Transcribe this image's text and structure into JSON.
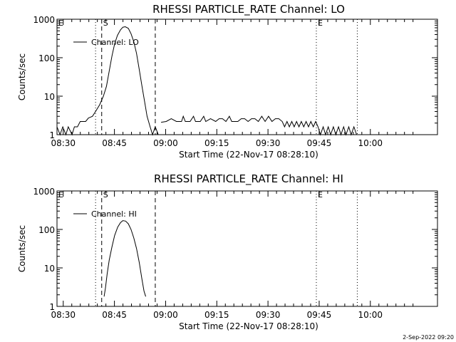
{
  "chart_data": [
    {
      "type": "line",
      "title": "RHESSI PARTICLE_RATE Channel: LO",
      "xlabel": "Start Time (22-Nov-17 08:28:10)",
      "ylabel": "Counts/sec",
      "yscale": "log",
      "ylim": [
        1,
        1000
      ],
      "xlim_minutes_after_0828_10": [
        0,
        111.5
      ],
      "x_ticks": [
        {
          "t": 1.83,
          "label": "08:30"
        },
        {
          "t": 16.83,
          "label": "08:45"
        },
        {
          "t": 31.83,
          "label": "09:00"
        },
        {
          "t": 46.83,
          "label": "09:15"
        },
        {
          "t": 61.83,
          "label": "09:30"
        },
        {
          "t": 76.83,
          "label": "09:45"
        },
        {
          "t": 91.83,
          "label": "10:00"
        }
      ],
      "y_ticks": [
        {
          "v": 1,
          "label": "1"
        },
        {
          "v": 10,
          "label": "10"
        },
        {
          "v": 100,
          "label": "100"
        },
        {
          "v": 1000,
          "label": "1000"
        }
      ],
      "legend": "Channel: LO",
      "legend_position": "top-left",
      "vlines": [
        {
          "t": 11.3,
          "style": "dotted",
          "label": ""
        },
        {
          "t": 13.1,
          "style": "dashed",
          "label": "S"
        },
        {
          "t": 28.8,
          "style": "dashed",
          "label": ""
        },
        {
          "t": 76.0,
          "style": "dotted",
          "label": "E"
        },
        {
          "t": 88.0,
          "style": "dotted",
          "label": ""
        }
      ],
      "corner_label": "E",
      "series": [
        {
          "name": "Channel: LO",
          "segments": [
            [
              [
                0,
                1.6
              ],
              [
                0.9,
                1
              ],
              [
                1.7,
                1.6
              ],
              [
                2.6,
                1
              ],
              [
                3.3,
                1.6
              ],
              [
                4.4,
                1
              ],
              [
                5.1,
                1.6
              ],
              [
                6.0,
                1.6
              ],
              [
                6.8,
                2.2
              ],
              [
                8.4,
                2.2
              ],
              [
                9.2,
                2.7
              ],
              [
                10.4,
                3
              ],
              [
                11.3,
                4
              ],
              [
                12.5,
                6
              ],
              [
                13.6,
                10
              ],
              [
                14.5,
                18
              ],
              [
                15.3,
                45
              ],
              [
                16.1,
                110
              ],
              [
                16.9,
                230
              ],
              [
                17.7,
                380
              ],
              [
                18.6,
                530
              ],
              [
                19.3,
                620
              ],
              [
                20.0,
                640
              ],
              [
                20.9,
                580
              ],
              [
                21.7,
                420
              ],
              [
                22.5,
                260
              ],
              [
                23.3,
                130
              ],
              [
                24.1,
                50
              ],
              [
                24.9,
                18
              ],
              [
                25.7,
                7
              ],
              [
                26.4,
                3
              ],
              [
                27.3,
                1.6
              ],
              [
                28.0,
                1
              ],
              [
                28.8,
                1.6
              ],
              [
                29.7,
                1
              ]
            ],
            [
              [
                30.5,
                2.1
              ],
              [
                32.0,
                2.2
              ],
              [
                33.5,
                2.6
              ],
              [
                35.0,
                2.2
              ],
              [
                36.5,
                2.2
              ],
              [
                37.0,
                3
              ],
              [
                37.6,
                2.2
              ],
              [
                39.0,
                2.2
              ],
              [
                40.0,
                3
              ],
              [
                40.6,
                2.2
              ],
              [
                42.0,
                2.2
              ],
              [
                43.0,
                3
              ],
              [
                43.6,
                2.2
              ],
              [
                45.0,
                2.6
              ],
              [
                46.5,
                2.2
              ],
              [
                47.5,
                2.6
              ],
              [
                48.5,
                2.6
              ],
              [
                49.5,
                2.2
              ],
              [
                50.5,
                3
              ],
              [
                51.2,
                2.2
              ],
              [
                53.0,
                2.2
              ],
              [
                54.0,
                2.6
              ],
              [
                55.0,
                2.6
              ],
              [
                56.0,
                2.2
              ],
              [
                57.0,
                2.6
              ],
              [
                58.0,
                2.6
              ],
              [
                59.0,
                2.2
              ],
              [
                60.0,
                3
              ],
              [
                61.0,
                2.2
              ],
              [
                62.0,
                3
              ],
              [
                63.0,
                2.2
              ],
              [
                64.0,
                2.6
              ],
              [
                65.0,
                2.6
              ],
              [
                66.0,
                2.2
              ],
              [
                66.7,
                1.6
              ],
              [
                67.4,
                2.2
              ],
              [
                68.1,
                1.6
              ],
              [
                68.8,
                2.2
              ],
              [
                69.5,
                1.6
              ],
              [
                70.2,
                2.2
              ],
              [
                70.9,
                1.6
              ],
              [
                71.6,
                2.2
              ],
              [
                72.3,
                1.6
              ],
              [
                73.0,
                2.2
              ],
              [
                73.7,
                1.6
              ],
              [
                74.4,
                2.2
              ],
              [
                75.1,
                1.6
              ],
              [
                75.8,
                2.2
              ],
              [
                76.5,
                1.6
              ],
              [
                77.2,
                1
              ],
              [
                78.0,
                1.6
              ],
              [
                78.7,
                1
              ],
              [
                79.5,
                1.6
              ],
              [
                80.2,
                1
              ],
              [
                81.0,
                1.6
              ],
              [
                81.7,
                1
              ],
              [
                82.5,
                1.6
              ],
              [
                83.2,
                1
              ],
              [
                84.0,
                1.6
              ],
              [
                84.7,
                1
              ],
              [
                85.5,
                1.6
              ],
              [
                86.2,
                1
              ],
              [
                87.0,
                1.6
              ],
              [
                87.8,
                1
              ]
            ]
          ]
        }
      ]
    },
    {
      "type": "line",
      "title": "RHESSI PARTICLE_RATE Channel: HI",
      "xlabel": "Start Time (22-Nov-17 08:28:10)",
      "ylabel": "Counts/sec",
      "yscale": "log",
      "ylim": [
        1,
        1000
      ],
      "xlim_minutes_after_0828_10": [
        0,
        111.5
      ],
      "x_ticks": [
        {
          "t": 1.83,
          "label": "08:30"
        },
        {
          "t": 16.83,
          "label": "08:45"
        },
        {
          "t": 31.83,
          "label": "09:00"
        },
        {
          "t": 46.83,
          "label": "09:15"
        },
        {
          "t": 61.83,
          "label": "09:30"
        },
        {
          "t": 76.83,
          "label": "09:45"
        },
        {
          "t": 91.83,
          "label": "10:00"
        }
      ],
      "y_ticks": [
        {
          "v": 1,
          "label": "1"
        },
        {
          "v": 10,
          "label": "10"
        },
        {
          "v": 100,
          "label": "100"
        },
        {
          "v": 1000,
          "label": "1000"
        }
      ],
      "legend": "Channel: HI",
      "legend_position": "top-left",
      "vlines": [
        {
          "t": 11.3,
          "style": "dotted",
          "label": ""
        },
        {
          "t": 13.1,
          "style": "dashed",
          "label": "S"
        },
        {
          "t": 28.8,
          "style": "dashed",
          "label": ""
        },
        {
          "t": 76.0,
          "style": "dotted",
          "label": "E"
        },
        {
          "t": 88.0,
          "style": "dotted",
          "label": ""
        }
      ],
      "corner_label": "E",
      "series": [
        {
          "name": "Channel: HI",
          "segments": [
            [
              [
                13.8,
                1.8
              ],
              [
                14.2,
                3
              ],
              [
                14.7,
                7
              ],
              [
                15.3,
                16
              ],
              [
                16.1,
                35
              ],
              [
                16.9,
                70
              ],
              [
                17.8,
                115
              ],
              [
                18.6,
                150
              ],
              [
                19.3,
                170
              ],
              [
                20.1,
                165
              ],
              [
                20.9,
                140
              ],
              [
                21.7,
                100
              ],
              [
                22.5,
                60
              ],
              [
                23.3,
                32
              ],
              [
                24.1,
                14
              ],
              [
                24.9,
                5
              ],
              [
                25.5,
                2.5
              ],
              [
                26.0,
                1.8
              ]
            ]
          ]
        }
      ]
    }
  ],
  "timestamp": "2-Sep-2022 09:20"
}
